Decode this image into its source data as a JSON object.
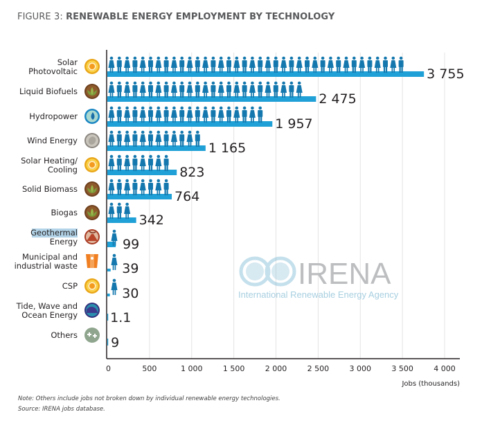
{
  "title": {
    "prefix": "FIGURE 3: ",
    "main": "RENEWABLE ENERGY EMPLOYMENT BY TECHNOLOGY"
  },
  "notes": {
    "note": "Note: Others include jobs not broken down by individual renewable energy technologies.",
    "source": "Source: IRENA jobs database."
  },
  "watermark": {
    "name": "IRENA",
    "subtitle": "International Renewable Energy Agency"
  },
  "colors": {
    "bar": "#1fa0d6",
    "person": "#1478ae",
    "grid": "#e3e3e3",
    "axis": "#231f20"
  },
  "chart_data": {
    "type": "bar",
    "orientation": "horizontal",
    "title": "RENEWABLE ENERGY EMPLOYMENT BY TECHNOLOGY",
    "xlabel": "Jobs (thousands)",
    "ylabel": "",
    "xlim": [
      0,
      4000
    ],
    "xticks": [
      0,
      500,
      1000,
      1500,
      2000,
      2500,
      3000,
      3500,
      4000
    ],
    "xtick_labels": [
      "0",
      "500",
      "1 000",
      "1 500",
      "2 000",
      "2 500",
      "3 000",
      "3 500",
      "4 000"
    ],
    "grid": "vertical",
    "categories": [
      {
        "label": [
          "Solar",
          "Photovoltaic"
        ],
        "icon": "sun-icon",
        "icon_color": "#f2b21b",
        "value": 3755,
        "value_label": "3 755"
      },
      {
        "label": [
          "Liquid Biofuels"
        ],
        "icon": "leaf-icon",
        "icon_color": "#7a4a22",
        "value": 2475,
        "value_label": "2 475"
      },
      {
        "label": [
          "Hydropower"
        ],
        "icon": "water-drop-icon",
        "icon_color": "#1f8fc9",
        "value": 1957,
        "value_label": "1 957"
      },
      {
        "label": [
          "Wind Energy"
        ],
        "icon": "wind-icon",
        "icon_color": "#9b9690",
        "value": 1165,
        "value_label": "1 165"
      },
      {
        "label": [
          "Solar Heating/",
          "Cooling"
        ],
        "icon": "sun-icon",
        "icon_color": "#f2b21b",
        "value": 823,
        "value_label": "823"
      },
      {
        "label": [
          "Solid Biomass"
        ],
        "icon": "leaf-icon",
        "icon_color": "#7a4a22",
        "value": 764,
        "value_label": "764"
      },
      {
        "label": [
          "Biogas"
        ],
        "icon": "leaf-icon",
        "icon_color": "#7a4a22",
        "value": 342,
        "value_label": "342"
      },
      {
        "label": [
          "Geothermal",
          "Energy"
        ],
        "icon": "volcano-icon",
        "icon_color": "#b8452a",
        "value": 99,
        "value_label": "99",
        "highlight_first_line": true
      },
      {
        "label": [
          "Municipal and",
          "industrial waste"
        ],
        "icon": "bin-icon",
        "icon_color": "#f07f22",
        "value": 39,
        "value_label": "39"
      },
      {
        "label": [
          "CSP"
        ],
        "icon": "sun-icon",
        "icon_color": "#f2b21b",
        "value": 30,
        "value_label": "30"
      },
      {
        "label": [
          "Tide, Wave and",
          "Ocean Energy"
        ],
        "icon": "wave-icon",
        "icon_color": "#3d3a8c",
        "value": 1.1,
        "value_label": "1.1"
      },
      {
        "label": [
          "Others"
        ],
        "icon": "plus-icon",
        "icon_color": "#8fa58d",
        "value": 9,
        "value_label": "9"
      }
    ],
    "people_per_icon": 100
  }
}
